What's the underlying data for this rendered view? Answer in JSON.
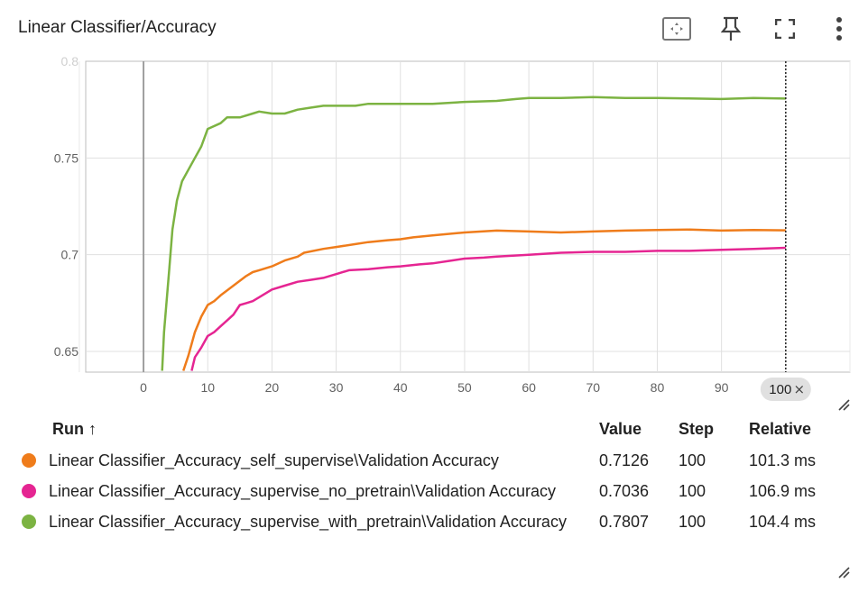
{
  "card": {
    "title": "Linear Classifier/Accuracy"
  },
  "toolbar": {
    "icons": [
      "fit-domain-icon",
      "pin-icon",
      "fullscreen-icon",
      "more-vert-icon"
    ]
  },
  "chart_data": {
    "type": "line",
    "xlim": [
      -9,
      110
    ],
    "ylim": [
      0.6393,
      0.8
    ],
    "x_ticks": [
      0,
      10,
      20,
      30,
      40,
      50,
      60,
      70,
      80,
      90
    ],
    "x_tick_labels": [
      "0",
      "10",
      "20",
      "30",
      "40",
      "50",
      "60",
      "70",
      "80",
      "90"
    ],
    "y_ticks": [
      0.65,
      0.7,
      0.75
    ],
    "y_tick_labels": [
      "0.65",
      "0.7",
      "0.75"
    ],
    "y_top_label": "0.8",
    "cursor_step": 100,
    "cursor_label": "100",
    "grid": true,
    "series": [
      {
        "color": "#7cb342",
        "points": [
          [
            2.9,
            0.64
          ],
          [
            3.2,
            0.66
          ],
          [
            4,
            0.692
          ],
          [
            4.5,
            0.713
          ],
          [
            5.2,
            0.728
          ],
          [
            6,
            0.738
          ],
          [
            7,
            0.744
          ],
          [
            8,
            0.75
          ],
          [
            9,
            0.756
          ],
          [
            10,
            0.765
          ],
          [
            12,
            0.768
          ],
          [
            13,
            0.771
          ],
          [
            15,
            0.771
          ],
          [
            17,
            0.773
          ],
          [
            18,
            0.774
          ],
          [
            20,
            0.773
          ],
          [
            22,
            0.773
          ],
          [
            24,
            0.775
          ],
          [
            26,
            0.776
          ],
          [
            28,
            0.777
          ],
          [
            30,
            0.777
          ],
          [
            33,
            0.777
          ],
          [
            35,
            0.778
          ],
          [
            40,
            0.778
          ],
          [
            45,
            0.778
          ],
          [
            50,
            0.779
          ],
          [
            55,
            0.7795
          ],
          [
            58,
            0.7805
          ],
          [
            60,
            0.781
          ],
          [
            65,
            0.781
          ],
          [
            70,
            0.7815
          ],
          [
            75,
            0.781
          ],
          [
            80,
            0.781
          ],
          [
            85,
            0.7808
          ],
          [
            90,
            0.7805
          ],
          [
            95,
            0.781
          ],
          [
            100,
            0.7807
          ]
        ]
      },
      {
        "color": "#ef7c1b",
        "points": [
          [
            6.2,
            0.64
          ],
          [
            7,
            0.648
          ],
          [
            8,
            0.66
          ],
          [
            9,
            0.668
          ],
          [
            10,
            0.674
          ],
          [
            11,
            0.676
          ],
          [
            12,
            0.679
          ],
          [
            14,
            0.684
          ],
          [
            16,
            0.689
          ],
          [
            17,
            0.691
          ],
          [
            18,
            0.692
          ],
          [
            20,
            0.694
          ],
          [
            22,
            0.697
          ],
          [
            24,
            0.699
          ],
          [
            25,
            0.701
          ],
          [
            28,
            0.703
          ],
          [
            30,
            0.704
          ],
          [
            33,
            0.7055
          ],
          [
            35,
            0.7065
          ],
          [
            38,
            0.7075
          ],
          [
            40,
            0.708
          ],
          [
            42,
            0.709
          ],
          [
            45,
            0.71
          ],
          [
            50,
            0.7115
          ],
          [
            55,
            0.7125
          ],
          [
            60,
            0.712
          ],
          [
            65,
            0.7115
          ],
          [
            70,
            0.712
          ],
          [
            75,
            0.7125
          ],
          [
            80,
            0.7128
          ],
          [
            85,
            0.713
          ],
          [
            90,
            0.7125
          ],
          [
            95,
            0.7128
          ],
          [
            100,
            0.7126
          ]
        ]
      },
      {
        "color": "#e52592",
        "points": [
          [
            7.5,
            0.64
          ],
          [
            8,
            0.647
          ],
          [
            9,
            0.652
          ],
          [
            10,
            0.658
          ],
          [
            11,
            0.66
          ],
          [
            12,
            0.663
          ],
          [
            13,
            0.666
          ],
          [
            14,
            0.669
          ],
          [
            15,
            0.674
          ],
          [
            16,
            0.675
          ],
          [
            17,
            0.676
          ],
          [
            18,
            0.678
          ],
          [
            20,
            0.682
          ],
          [
            22,
            0.684
          ],
          [
            24,
            0.686
          ],
          [
            26,
            0.687
          ],
          [
            28,
            0.688
          ],
          [
            30,
            0.69
          ],
          [
            32,
            0.692
          ],
          [
            35,
            0.6925
          ],
          [
            38,
            0.6935
          ],
          [
            40,
            0.694
          ],
          [
            43,
            0.695
          ],
          [
            45,
            0.6955
          ],
          [
            48,
            0.697
          ],
          [
            50,
            0.698
          ],
          [
            53,
            0.6985
          ],
          [
            55,
            0.699
          ],
          [
            60,
            0.7
          ],
          [
            65,
            0.701
          ],
          [
            70,
            0.7015
          ],
          [
            75,
            0.7015
          ],
          [
            80,
            0.702
          ],
          [
            85,
            0.702
          ],
          [
            90,
            0.7025
          ],
          [
            95,
            0.703
          ],
          [
            100,
            0.7036
          ]
        ]
      }
    ]
  },
  "table": {
    "headers": {
      "run": "Run ↑",
      "value": "Value",
      "step": "Step",
      "relative": "Relative"
    },
    "rows": [
      {
        "color": "#ef7c1b",
        "name": "Linear Classifier_Accuracy_self_supervise\\Validation Accuracy",
        "value": "0.7126",
        "step": "100",
        "relative": "101.3 ms"
      },
      {
        "color": "#e52592",
        "name": "Linear Classifier_Accuracy_supervise_no_pretrain\\Validation Accuracy",
        "value": "0.7036",
        "step": "100",
        "relative": "106.9 ms"
      },
      {
        "color": "#7cb342",
        "name": "Linear Classifier_Accuracy_supervise_with_pretrain\\Validation Accuracy",
        "value": "0.7807",
        "step": "100",
        "relative": "104.4 ms"
      }
    ]
  }
}
